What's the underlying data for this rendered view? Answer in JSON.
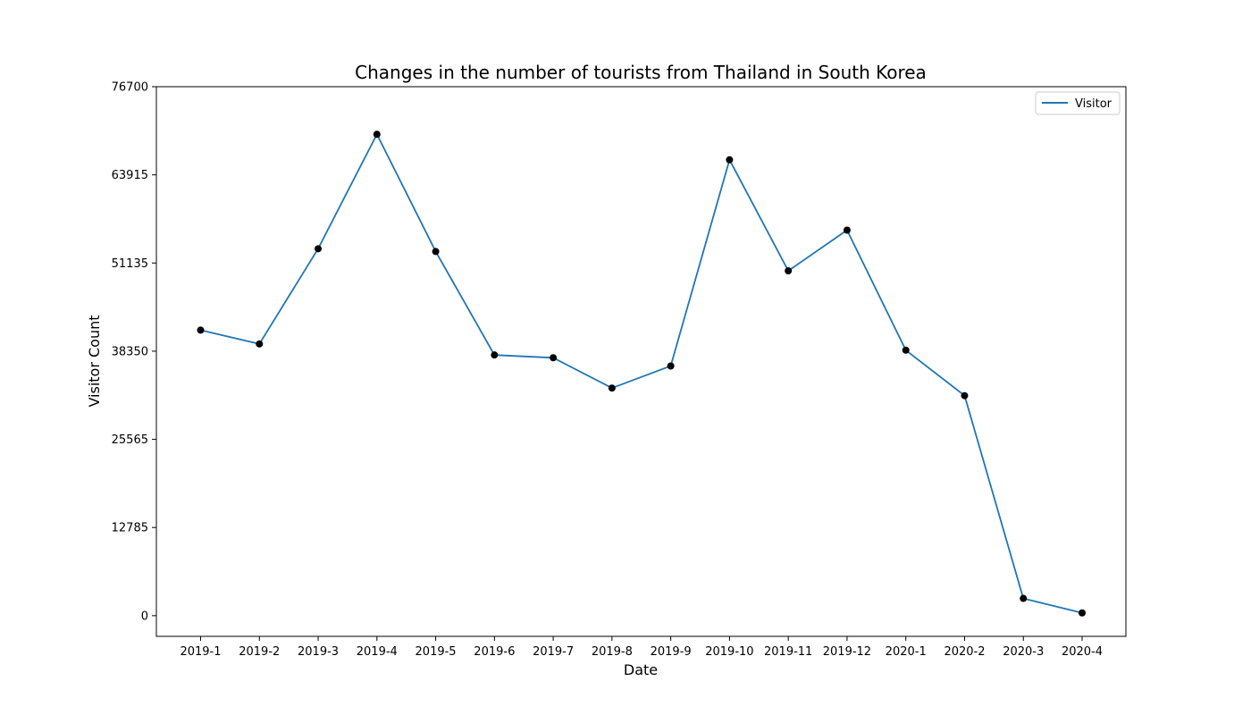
{
  "chart_data": {
    "type": "line",
    "title": "Changes in the number of tourists from Thailand in South Korea",
    "xlabel": "Date",
    "ylabel": "Visitor Count",
    "ylim": [
      -3000,
      76700
    ],
    "yticks": [
      "0",
      "12785",
      "25565",
      "38350",
      "51135",
      "63915",
      "76700"
    ],
    "grid": false,
    "legend_position": "top-right",
    "categories": [
      "2019-1",
      "2019-2",
      "2019-3",
      "2019-4",
      "2019-5",
      "2019-6",
      "2019-7",
      "2019-8",
      "2019-9",
      "2019-10",
      "2019-11",
      "2019-12",
      "2020-1",
      "2020-2",
      "2020-3",
      "2020-4"
    ],
    "series": [
      {
        "name": "Visitor",
        "color": "#1f77b4",
        "marker_color": "#000000",
        "values": [
          41400,
          39400,
          53200,
          69800,
          52800,
          37800,
          37400,
          33000,
          36200,
          66100,
          50000,
          55900,
          38500,
          31900,
          2500,
          400
        ]
      }
    ]
  }
}
